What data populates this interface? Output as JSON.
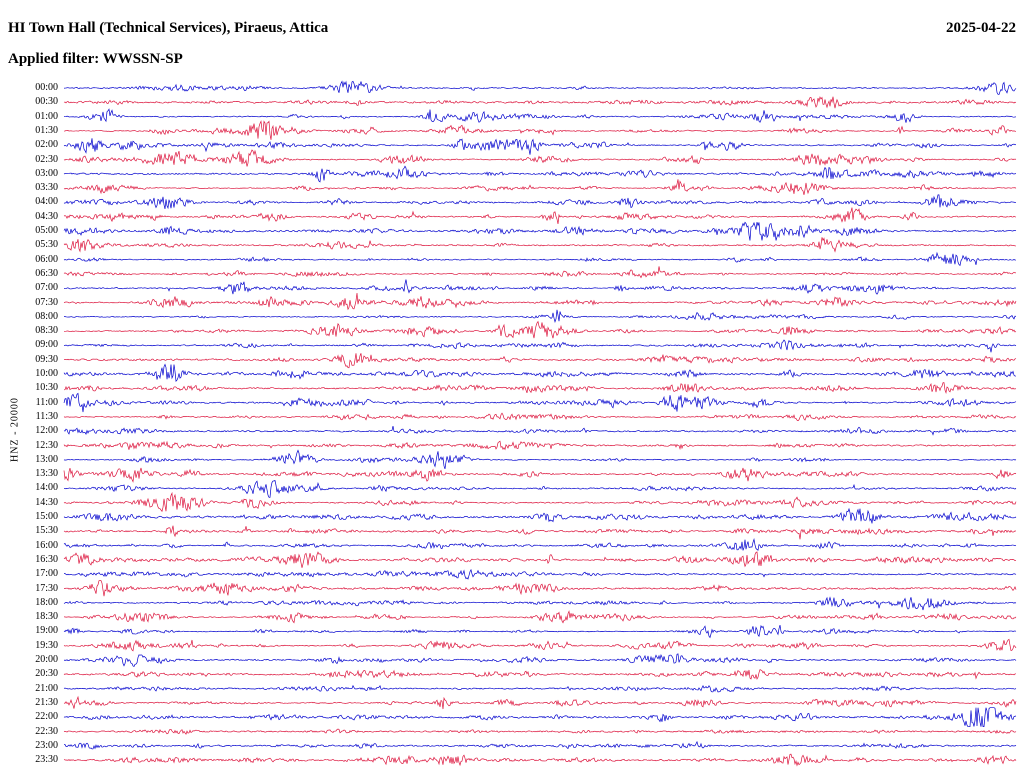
{
  "header": {
    "title": "HI Town Hall (Technical Services), Piraeus, Attica",
    "date": "2025-04-22",
    "filter_label": "Applied filter: WWSSN-SP"
  },
  "axis": {
    "vertical_label": "HNZ - 20000"
  },
  "chart_data": {
    "type": "line",
    "subtype": "helicorder-seismogram",
    "title": "HI Town Hall (Technical Services), Piraeus, Attica",
    "date": "2025-04-22",
    "filter": "WWSSN-SP",
    "channel_label": "HNZ - 20000",
    "row_duration_minutes": 30,
    "rows_per_day": 48,
    "trace_colors": [
      "#0000cd",
      "#dc143c"
    ],
    "rows": [
      {
        "time": "00:00",
        "color": "#0000cd"
      },
      {
        "time": "00:30",
        "color": "#dc143c"
      },
      {
        "time": "01:00",
        "color": "#0000cd"
      },
      {
        "time": "01:30",
        "color": "#dc143c"
      },
      {
        "time": "02:00",
        "color": "#0000cd"
      },
      {
        "time": "02:30",
        "color": "#dc143c"
      },
      {
        "time": "03:00",
        "color": "#0000cd"
      },
      {
        "time": "03:30",
        "color": "#dc143c"
      },
      {
        "time": "04:00",
        "color": "#0000cd"
      },
      {
        "time": "04:30",
        "color": "#dc143c"
      },
      {
        "time": "05:00",
        "color": "#0000cd"
      },
      {
        "time": "05:30",
        "color": "#dc143c"
      },
      {
        "time": "06:00",
        "color": "#0000cd"
      },
      {
        "time": "06:30",
        "color": "#dc143c"
      },
      {
        "time": "07:00",
        "color": "#0000cd"
      },
      {
        "time": "07:30",
        "color": "#dc143c"
      },
      {
        "time": "08:00",
        "color": "#0000cd"
      },
      {
        "time": "08:30",
        "color": "#dc143c"
      },
      {
        "time": "09:00",
        "color": "#0000cd"
      },
      {
        "time": "09:30",
        "color": "#dc143c"
      },
      {
        "time": "10:00",
        "color": "#0000cd"
      },
      {
        "time": "10:30",
        "color": "#dc143c"
      },
      {
        "time": "11:00",
        "color": "#0000cd"
      },
      {
        "time": "11:30",
        "color": "#dc143c"
      },
      {
        "time": "12:00",
        "color": "#0000cd"
      },
      {
        "time": "12:30",
        "color": "#dc143c"
      },
      {
        "time": "13:00",
        "color": "#0000cd"
      },
      {
        "time": "13:30",
        "color": "#dc143c"
      },
      {
        "time": "14:00",
        "color": "#0000cd"
      },
      {
        "time": "14:30",
        "color": "#dc143c"
      },
      {
        "time": "15:00",
        "color": "#0000cd"
      },
      {
        "time": "15:30",
        "color": "#dc143c"
      },
      {
        "time": "16:00",
        "color": "#0000cd"
      },
      {
        "time": "16:30",
        "color": "#dc143c"
      },
      {
        "time": "17:00",
        "color": "#0000cd"
      },
      {
        "time": "17:30",
        "color": "#dc143c"
      },
      {
        "time": "18:00",
        "color": "#0000cd"
      },
      {
        "time": "18:30",
        "color": "#dc143c"
      },
      {
        "time": "19:00",
        "color": "#0000cd"
      },
      {
        "time": "19:30",
        "color": "#dc143c"
      },
      {
        "time": "20:00",
        "color": "#0000cd"
      },
      {
        "time": "20:30",
        "color": "#dc143c"
      },
      {
        "time": "21:00",
        "color": "#0000cd"
      },
      {
        "time": "21:30",
        "color": "#dc143c"
      },
      {
        "time": "22:00",
        "color": "#0000cd"
      },
      {
        "time": "22:30",
        "color": "#dc143c"
      },
      {
        "time": "23:00",
        "color": "#0000cd"
      },
      {
        "time": "23:30",
        "color": "#dc143c"
      }
    ]
  }
}
